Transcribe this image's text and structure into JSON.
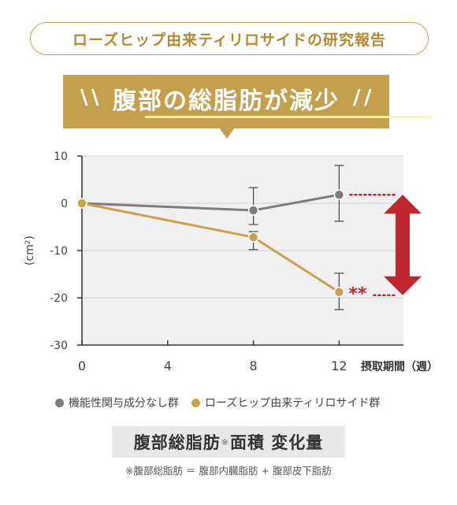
{
  "header": {
    "study_label": "ローズヒップ由来ティリロサイドの研究報告",
    "banner_title": "腹部の総脂肪が減少"
  },
  "metric": {
    "title_main": "腹部総脂肪",
    "title_mark": "※",
    "title_rest": "面積 変化量"
  },
  "footnote": "※腹部総脂肪 ＝ 腹部内臓脂肪 + 腹部皮下脂肪",
  "colors": {
    "gold": "#c9a24c",
    "gray": "#7d7d7d",
    "red": "#c0262d",
    "plot_bg": "#f0f0f0"
  },
  "chart_data": {
    "type": "line",
    "ylabel": "(cm²)",
    "xlabel": "摂取期間（週）",
    "xlim": [
      0,
      15
    ],
    "ylim": [
      -30,
      10
    ],
    "x_ticks": [
      0,
      4,
      8,
      12
    ],
    "y_ticks": [
      10,
      0,
      -10,
      -20,
      -30
    ],
    "grid": true,
    "series": [
      {
        "name": "機能性関与成分なし群",
        "color": "#7d7d7d",
        "x": [
          0,
          8,
          12
        ],
        "values": [
          0,
          -1.5,
          1.8
        ],
        "err_low": [
          null,
          -4.5,
          -3.8
        ],
        "err_high": [
          null,
          3.3,
          8.0
        ]
      },
      {
        "name": "ローズヒップ由来ティリロサイド群",
        "color": "#c9a24c",
        "x": [
          0,
          8,
          12
        ],
        "values": [
          0,
          -7.2,
          -18.8
        ],
        "err_low": [
          null,
          -9.8,
          -22.5
        ],
        "err_high": [
          null,
          -6.0,
          -14.8
        ]
      }
    ],
    "significance": {
      "x": 12,
      "label": "**"
    }
  }
}
